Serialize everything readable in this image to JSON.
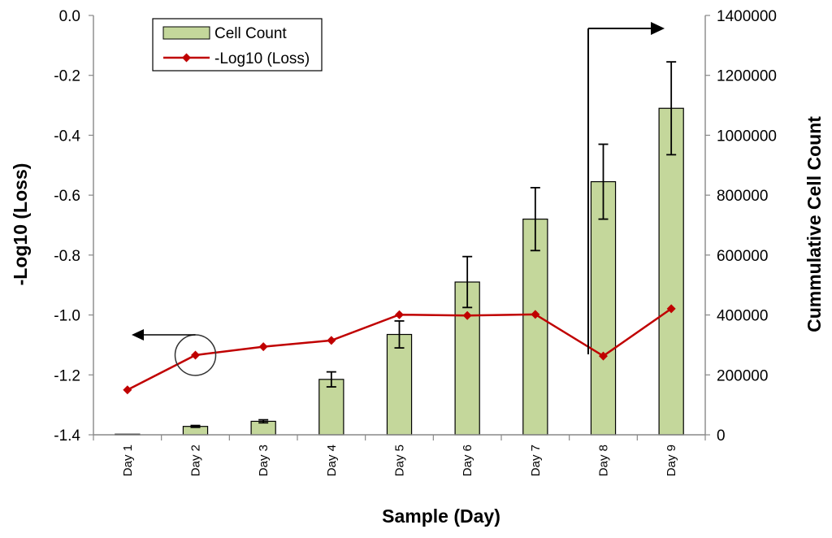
{
  "chart_data": {
    "type": "bar+line",
    "title": "",
    "xlabel": "Sample (Day)",
    "categories": [
      "Day 1",
      "Day 2",
      "Day 3",
      "Day 4",
      "Day 5",
      "Day 6",
      "Day 7",
      "Day 8",
      "Day 9"
    ],
    "left_axis": {
      "label": "-Log10 (Loss)",
      "range": [
        -1.4,
        0.0
      ],
      "ticks": [
        0.0,
        -0.2,
        -0.4,
        -0.6,
        -0.8,
        -1.0,
        -1.2,
        -1.4
      ],
      "tick_labels": [
        "0.0",
        "-0.2",
        "-0.4",
        "-0.6",
        "-0.8",
        "-1.0",
        "-1.2",
        "-1.4"
      ]
    },
    "right_axis": {
      "label": "Cummulative Cell Count",
      "range": [
        0,
        1400000
      ],
      "ticks": [
        0,
        200000,
        400000,
        600000,
        800000,
        1000000,
        1200000,
        1400000
      ],
      "tick_labels": [
        "0",
        "200000",
        "400000",
        "600000",
        "800000",
        "1000000",
        "1200000",
        "1400000"
      ]
    },
    "series": [
      {
        "name": "Cell Count",
        "type": "bar",
        "axis": "right",
        "color": "#c4d79b",
        "values": [
          2000,
          28000,
          45000,
          185000,
          335000,
          510000,
          720000,
          845000,
          1090000
        ],
        "error": [
          0,
          3000,
          5000,
          25000,
          45000,
          85000,
          105000,
          125000,
          155000
        ]
      },
      {
        "name": "-Log10 (Loss)",
        "type": "line",
        "axis": "left",
        "color": "#c00000",
        "values": [
          -1.25,
          -1.134,
          -1.106,
          -1.085,
          -0.999,
          -1.002,
          -0.998,
          -1.137,
          -0.979
        ]
      }
    ],
    "legend": {
      "position": "top-left",
      "entries": [
        "Cell Count",
        "-Log10 (Loss)"
      ]
    },
    "annotations": [
      {
        "kind": "circle-arrow",
        "target_series": "-Log10 (Loss)",
        "category": "Day 2",
        "points_to": "left axis"
      },
      {
        "kind": "bracket-arrow",
        "target_series": "Cell Count",
        "category": "Day 8",
        "points_to": "right axis"
      }
    ]
  }
}
